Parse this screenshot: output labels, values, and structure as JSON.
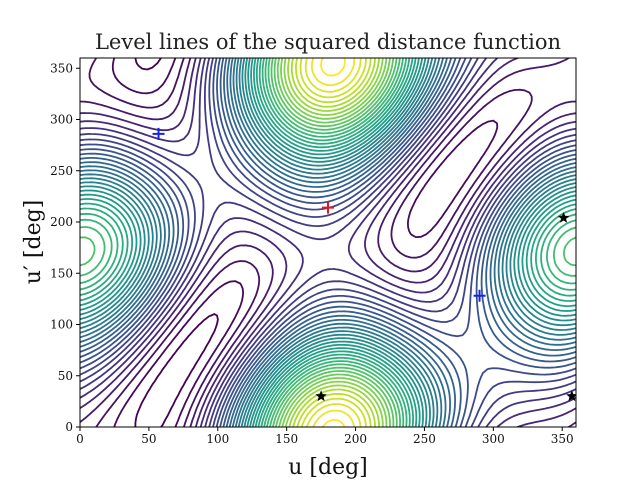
{
  "chart_data": {
    "type": "contour",
    "title": "Level lines of the squared distance function",
    "xlabel": "u [deg]",
    "ylabel": "u′ [deg]",
    "xlim": [
      0,
      360
    ],
    "ylim": [
      0,
      360
    ],
    "xticks": [
      0,
      50,
      100,
      150,
      200,
      250,
      300,
      350
    ],
    "yticks": [
      0,
      50,
      100,
      150,
      200,
      250,
      300,
      350
    ],
    "colormap": "viridis",
    "grid": false,
    "legend": "none",
    "contour_levels": 40,
    "markers": [
      {
        "kind": "maximum",
        "symbol": "plus",
        "color": "#e8131b",
        "x": 180,
        "y": 214
      },
      {
        "kind": "saddle",
        "symbol": "plus",
        "color": "#1324e8",
        "x": 57,
        "y": 286
      },
      {
        "kind": "saddle",
        "symbol": "plus",
        "color": "#1324e8",
        "x": 290,
        "y": 128
      },
      {
        "kind": "minimum",
        "symbol": "star",
        "color": "#000000",
        "x": 175,
        "y": 30
      },
      {
        "kind": "minimum",
        "symbol": "star",
        "color": "#000000",
        "x": 351,
        "y": 204
      },
      {
        "kind": "minimum",
        "symbol": "star",
        "color": "#000000",
        "x": 357,
        "y": 30
      }
    ]
  }
}
